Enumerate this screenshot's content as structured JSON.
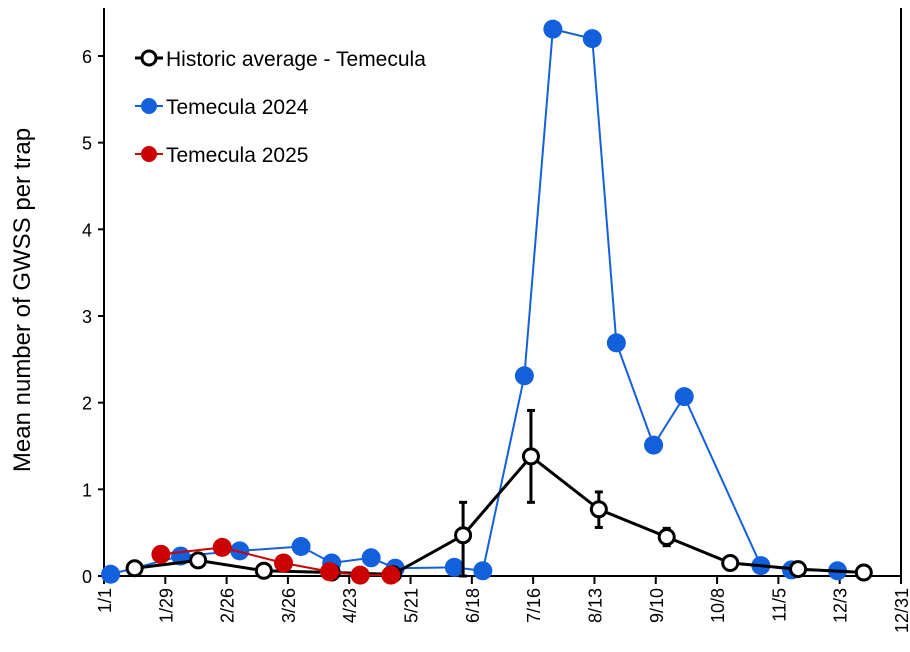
{
  "chart_data": {
    "type": "line",
    "title": "",
    "xlabel": "",
    "ylabel": "Mean number of GWSS per trap",
    "ylim": [
      0,
      6.5
    ],
    "yticks": [
      "0",
      "1",
      "2",
      "3",
      "4",
      "5",
      "6"
    ],
    "xticks": [
      "1/1",
      "1/29",
      "2/26",
      "3/26",
      "4/23",
      "5/21",
      "6/18",
      "7/16",
      "8/13",
      "9/10",
      "10/8",
      "11/5",
      "12/3",
      "12/31"
    ],
    "grid": false,
    "legend_position": "top-left",
    "series": [
      {
        "name": "Historic average - Temecula",
        "color": "#000000",
        "marker": "open-circle",
        "x": [
          "1/15",
          "2/13",
          "3/15",
          "4/15",
          "5/13",
          "6/14",
          "7/15",
          "8/15",
          "9/15",
          "10/14",
          "11/14",
          "12/14"
        ],
        "y": [
          0.09,
          0.18,
          0.06,
          0.04,
          0.02,
          0.47,
          1.38,
          0.77,
          0.45,
          0.15,
          0.08,
          0.04
        ],
        "error_upper": [
          null,
          null,
          null,
          null,
          null,
          0.85,
          1.91,
          0.97,
          0.55,
          null,
          null,
          null
        ],
        "error_lower": [
          null,
          null,
          null,
          null,
          null,
          0.0,
          0.85,
          0.56,
          0.35,
          null,
          null,
          null
        ]
      },
      {
        "name": "Temecula 2024",
        "color": "#1360DC",
        "marker": "filled-circle",
        "x": [
          "1/4",
          "2/5",
          "3/4",
          "4/1",
          "4/15",
          "5/3",
          "5/14",
          "6/10",
          "6/23",
          "7/12",
          "7/25",
          "8/12",
          "8/23",
          "9/9",
          "9/23",
          "10/28",
          "11/11",
          "12/2"
        ],
        "y": [
          0.02,
          0.23,
          0.29,
          0.34,
          0.15,
          0.21,
          0.09,
          0.1,
          0.06,
          2.31,
          6.31,
          6.2,
          2.69,
          1.51,
          2.07,
          0.12,
          0.07,
          0.06
        ]
      },
      {
        "name": "Temecula 2025",
        "color": "#CC0000",
        "marker": "filled-circle",
        "x": [
          "1/27",
          "2/24",
          "3/24",
          "4/14",
          "4/28",
          "5/12"
        ],
        "y": [
          0.25,
          0.33,
          0.15,
          0.05,
          0.01,
          0.01
        ]
      }
    ]
  }
}
